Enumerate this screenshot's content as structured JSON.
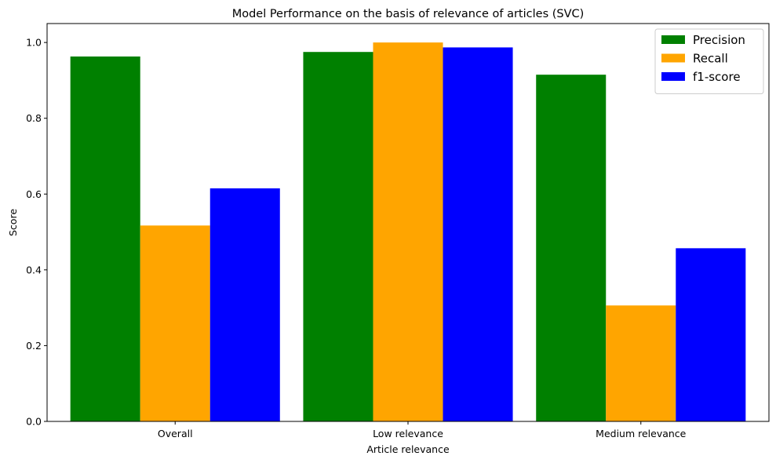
{
  "chart_data": {
    "type": "bar",
    "title": "Model Performance on the basis of relevance of articles (SVC)",
    "xlabel": "Article relevance",
    "ylabel": "Score",
    "categories": [
      "Overall",
      "Low relevance",
      "Medium relevance"
    ],
    "series": [
      {
        "name": "Precision",
        "color": "#008000",
        "values": [
          0.963,
          0.975,
          0.915
        ]
      },
      {
        "name": "Recall",
        "color": "#ffa500",
        "values": [
          0.517,
          1.0,
          0.306
        ]
      },
      {
        "name": "f1-score",
        "color": "#0000ff",
        "values": [
          0.615,
          0.987,
          0.457
        ]
      }
    ],
    "ylim": [
      0,
      1.05
    ],
    "yticks": [
      0.0,
      0.2,
      0.4,
      0.6,
      0.8,
      1.0
    ],
    "ytick_labels": [
      "0.0",
      "0.2",
      "0.4",
      "0.6",
      "0.8",
      "1.0"
    ],
    "legend": "top-right",
    "grid": false
  }
}
